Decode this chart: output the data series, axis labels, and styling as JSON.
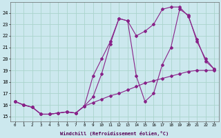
{
  "xlabel": "Windchill (Refroidissement éolien,°C)",
  "background_color": "#cce8ee",
  "grid_color": "#aad4cc",
  "line_color": "#882288",
  "x_ticks": [
    0,
    1,
    2,
    3,
    4,
    5,
    6,
    7,
    8,
    9,
    10,
    11,
    12,
    13,
    14,
    15,
    16,
    17,
    18,
    19,
    20,
    21,
    22,
    23
  ],
  "y_ticks": [
    15,
    16,
    17,
    18,
    19,
    20,
    21,
    22,
    23,
    24
  ],
  "xlim": [
    -0.5,
    23.5
  ],
  "ylim": [
    14.6,
    24.9
  ],
  "line1_y": [
    16.3,
    16.0,
    15.8,
    15.2,
    15.2,
    15.3,
    15.4,
    15.3,
    15.9,
    16.2,
    16.5,
    16.8,
    17.0,
    17.3,
    17.6,
    17.9,
    18.1,
    18.3,
    18.5,
    18.7,
    18.9,
    19.0,
    19.0,
    19.0
  ],
  "line2_y": [
    16.3,
    16.0,
    15.8,
    15.2,
    15.2,
    15.3,
    15.4,
    15.3,
    15.9,
    16.7,
    18.7,
    21.3,
    23.5,
    23.3,
    22.0,
    22.4,
    23.0,
    24.3,
    24.5,
    24.5,
    23.7,
    21.7,
    19.8,
    19.1
  ],
  "line3_y": [
    16.3,
    16.0,
    15.8,
    15.2,
    15.2,
    15.3,
    15.4,
    15.3,
    15.9,
    18.5,
    20.0,
    21.5,
    23.5,
    23.3,
    18.5,
    16.3,
    17.0,
    19.5,
    21.0,
    24.3,
    23.8,
    21.5,
    20.0,
    19.1
  ]
}
